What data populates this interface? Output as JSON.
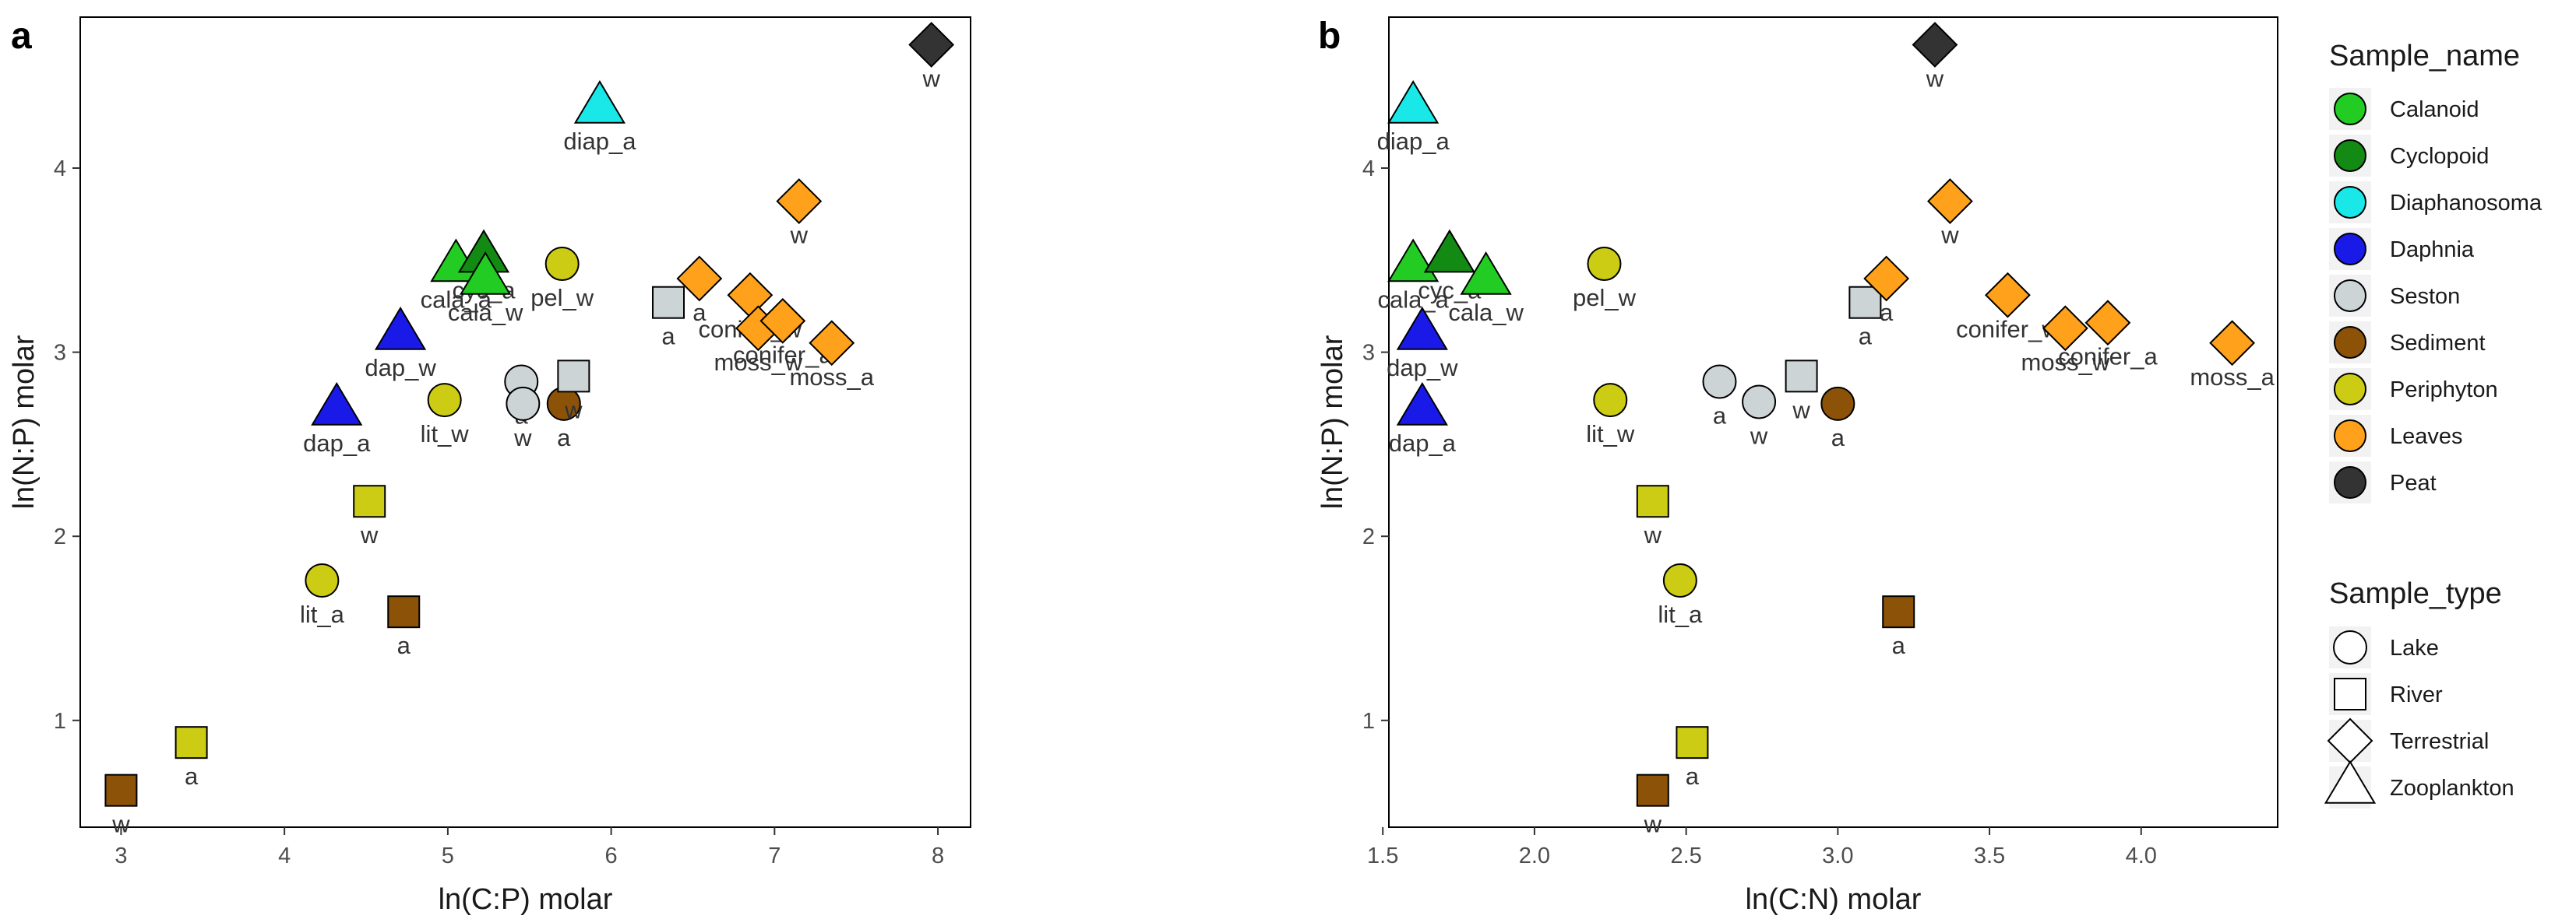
{
  "chart_data": [
    {
      "type": "scatter",
      "panel_label": "a",
      "xlabel": "ln(C:P) molar",
      "ylabel": "ln(N:P) molar",
      "xlim": [
        2.75,
        8.2
      ],
      "ylim": [
        0.42,
        4.82
      ],
      "xticks": [
        3,
        4,
        5,
        6,
        7,
        8
      ],
      "yticks": [
        1,
        2,
        3,
        4
      ],
      "grid": false,
      "points": [
        {
          "x": 3.0,
          "y": 0.62,
          "name": "Sediment",
          "shape": "square",
          "label": "w",
          "lpos": "below"
        },
        {
          "x": 3.43,
          "y": 0.88,
          "name": "Periphyton",
          "shape": "square",
          "label": "a",
          "lpos": "below"
        },
        {
          "x": 4.23,
          "y": 1.76,
          "name": "Periphyton",
          "shape": "circle",
          "label": "lit_a",
          "lpos": "below"
        },
        {
          "x": 4.73,
          "y": 1.59,
          "name": "Sediment",
          "shape": "square",
          "label": "a",
          "lpos": "below"
        },
        {
          "x": 4.52,
          "y": 2.19,
          "name": "Periphyton",
          "shape": "square",
          "label": "w",
          "lpos": "below"
        },
        {
          "x": 4.32,
          "y": 2.69,
          "name": "Daphnia",
          "shape": "triangle",
          "label": "dap_a",
          "lpos": "below"
        },
        {
          "x": 4.71,
          "y": 3.1,
          "name": "Daphnia",
          "shape": "triangle",
          "label": "dap_w",
          "lpos": "below"
        },
        {
          "x": 4.98,
          "y": 2.74,
          "name": "Periphyton",
          "shape": "circle",
          "label": "lit_w",
          "lpos": "below"
        },
        {
          "x": 5.05,
          "y": 3.47,
          "name": "Calanoid",
          "shape": "triangle",
          "label": "cala_a",
          "lpos": "below"
        },
        {
          "x": 5.22,
          "y": 3.52,
          "name": "Cyclopoid",
          "shape": "triangle",
          "label": "cyc_a",
          "lpos": "below"
        },
        {
          "x": 5.23,
          "y": 3.4,
          "name": "Calanoid",
          "shape": "triangle",
          "label": "cala_w",
          "lpos": "below"
        },
        {
          "x": 5.45,
          "y": 2.84,
          "name": "Seston",
          "shape": "circle",
          "label": "a",
          "lpos": "below"
        },
        {
          "x": 5.46,
          "y": 2.72,
          "name": "Seston",
          "shape": "circle",
          "label": "w",
          "lpos": "below"
        },
        {
          "x": 5.71,
          "y": 2.72,
          "name": "Sediment",
          "shape": "circle",
          "label": "a",
          "lpos": "below"
        },
        {
          "x": 5.77,
          "y": 2.87,
          "name": "Seston",
          "shape": "square",
          "label": "w",
          "lpos": "below"
        },
        {
          "x": 5.7,
          "y": 3.48,
          "name": "Periphyton",
          "shape": "circle",
          "label": "pel_w",
          "lpos": "below"
        },
        {
          "x": 5.93,
          "y": 4.33,
          "name": "Diaphanosoma",
          "shape": "triangle",
          "label": "diap_a",
          "lpos": "below"
        },
        {
          "x": 6.35,
          "y": 3.27,
          "name": "Seston",
          "shape": "square",
          "label": "a",
          "lpos": "below"
        },
        {
          "x": 6.54,
          "y": 3.4,
          "name": "Leaves",
          "shape": "diamond",
          "label": "a",
          "lpos": "below"
        },
        {
          "x": 6.85,
          "y": 3.31,
          "name": "Leaves",
          "shape": "diamond",
          "label": "conifer_w",
          "lpos": "below"
        },
        {
          "x": 6.9,
          "y": 3.13,
          "name": "Leaves",
          "shape": "diamond",
          "label": "moss_w",
          "lpos": "below"
        },
        {
          "x": 7.05,
          "y": 3.17,
          "name": "Leaves",
          "shape": "diamond",
          "label": "conifer_a",
          "lpos": "below"
        },
        {
          "x": 7.35,
          "y": 3.05,
          "name": "Leaves",
          "shape": "diamond",
          "label": "moss_a",
          "lpos": "below"
        },
        {
          "x": 7.15,
          "y": 3.82,
          "name": "Leaves",
          "shape": "diamond",
          "label": "w",
          "lpos": "below"
        },
        {
          "x": 7.96,
          "y": 4.67,
          "name": "Peat",
          "shape": "diamond",
          "label": "w",
          "lpos": "below"
        }
      ]
    },
    {
      "type": "scatter",
      "panel_label": "b",
      "xlabel": "ln(C:N) molar",
      "ylabel": "ln(N:P) molar",
      "xlim": [
        1.52,
        4.45
      ],
      "ylim": [
        0.42,
        4.82
      ],
      "xticks": [
        1.5,
        2.0,
        2.5,
        3.0,
        3.5,
        4.0
      ],
      "xticklabels": [
        "1.5",
        "2.0",
        "2.5",
        "3.0",
        "3.5",
        "4.0"
      ],
      "yticks": [
        1,
        2,
        3,
        4
      ],
      "grid": false,
      "points": [
        {
          "x": 1.6,
          "y": 4.33,
          "name": "Diaphanosoma",
          "shape": "triangle",
          "label": "diap_a",
          "lpos": "below"
        },
        {
          "x": 1.6,
          "y": 3.47,
          "name": "Calanoid",
          "shape": "triangle",
          "label": "cala_a",
          "lpos": "below"
        },
        {
          "x": 1.72,
          "y": 3.52,
          "name": "Cyclopoid",
          "shape": "triangle",
          "label": "cyc_a",
          "lpos": "below"
        },
        {
          "x": 1.84,
          "y": 3.4,
          "name": "Calanoid",
          "shape": "triangle",
          "label": "cala_w",
          "lpos": "below"
        },
        {
          "x": 1.63,
          "y": 3.1,
          "name": "Daphnia",
          "shape": "triangle",
          "label": "dap_w",
          "lpos": "below"
        },
        {
          "x": 1.63,
          "y": 2.69,
          "name": "Daphnia",
          "shape": "triangle",
          "label": "dap_a",
          "lpos": "below"
        },
        {
          "x": 2.23,
          "y": 3.48,
          "name": "Periphyton",
          "shape": "circle",
          "label": "pel_w",
          "lpos": "below"
        },
        {
          "x": 2.25,
          "y": 2.74,
          "name": "Periphyton",
          "shape": "circle",
          "label": "lit_w",
          "lpos": "below"
        },
        {
          "x": 2.61,
          "y": 2.84,
          "name": "Seston",
          "shape": "circle",
          "label": "a",
          "lpos": "below"
        },
        {
          "x": 2.74,
          "y": 2.73,
          "name": "Seston",
          "shape": "circle",
          "label": "w",
          "lpos": "below"
        },
        {
          "x": 2.88,
          "y": 2.87,
          "name": "Seston",
          "shape": "square",
          "label": "w",
          "lpos": "below"
        },
        {
          "x": 3.0,
          "y": 2.72,
          "name": "Sediment",
          "shape": "circle",
          "label": "a",
          "lpos": "below"
        },
        {
          "x": 3.09,
          "y": 3.27,
          "name": "Seston",
          "shape": "square",
          "label": "a",
          "lpos": "below"
        },
        {
          "x": 3.16,
          "y": 3.4,
          "name": "Leaves",
          "shape": "diamond",
          "label": "a",
          "lpos": "below"
        },
        {
          "x": 3.37,
          "y": 3.82,
          "name": "Leaves",
          "shape": "diamond",
          "label": "w",
          "lpos": "below"
        },
        {
          "x": 3.32,
          "y": 4.67,
          "name": "Peat",
          "shape": "diamond",
          "label": "w",
          "lpos": "below"
        },
        {
          "x": 3.56,
          "y": 3.31,
          "name": "Leaves",
          "shape": "diamond",
          "label": "conifer_w",
          "lpos": "below"
        },
        {
          "x": 3.75,
          "y": 3.13,
          "name": "Leaves",
          "shape": "diamond",
          "label": "moss_w",
          "lpos": "below"
        },
        {
          "x": 3.89,
          "y": 3.16,
          "name": "Leaves",
          "shape": "diamond",
          "label": "conifer_a",
          "lpos": "below"
        },
        {
          "x": 4.3,
          "y": 3.05,
          "name": "Leaves",
          "shape": "diamond",
          "label": "moss_a",
          "lpos": "below"
        },
        {
          "x": 2.39,
          "y": 2.19,
          "name": "Periphyton",
          "shape": "square",
          "label": "w",
          "lpos": "below"
        },
        {
          "x": 2.48,
          "y": 1.76,
          "name": "Periphyton",
          "shape": "circle",
          "label": "lit_a",
          "lpos": "below"
        },
        {
          "x": 3.2,
          "y": 1.59,
          "name": "Sediment",
          "shape": "square",
          "label": "a",
          "lpos": "below"
        },
        {
          "x": 2.52,
          "y": 0.88,
          "name": "Periphyton",
          "shape": "square",
          "label": "a",
          "lpos": "below"
        },
        {
          "x": 2.39,
          "y": 0.62,
          "name": "Sediment",
          "shape": "square",
          "label": "w",
          "lpos": "below"
        }
      ]
    }
  ],
  "legend": {
    "placement": "right",
    "sample_name": {
      "title": "Sample_name",
      "items": [
        {
          "name": "Calanoid",
          "color": "#22cc22"
        },
        {
          "name": "Cyclopoid",
          "color": "#138a13"
        },
        {
          "name": "Diaphanosoma",
          "color": "#1ae8e8"
        },
        {
          "name": "Daphnia",
          "color": "#1a1ae8"
        },
        {
          "name": "Seston",
          "color": "#cdd4d6"
        },
        {
          "name": "Sediment",
          "color": "#8b5208"
        },
        {
          "name": "Periphyton",
          "color": "#cccc14"
        },
        {
          "name": "Leaves",
          "color": "#ffa11a"
        },
        {
          "name": "Peat",
          "color": "#333333"
        }
      ]
    },
    "sample_type": {
      "title": "Sample_type",
      "items": [
        {
          "name": "Lake",
          "shape": "circle"
        },
        {
          "name": "River",
          "shape": "square"
        },
        {
          "name": "Terrestrial",
          "shape": "diamond"
        },
        {
          "name": "Zooplankton",
          "shape": "triangle"
        }
      ]
    }
  }
}
